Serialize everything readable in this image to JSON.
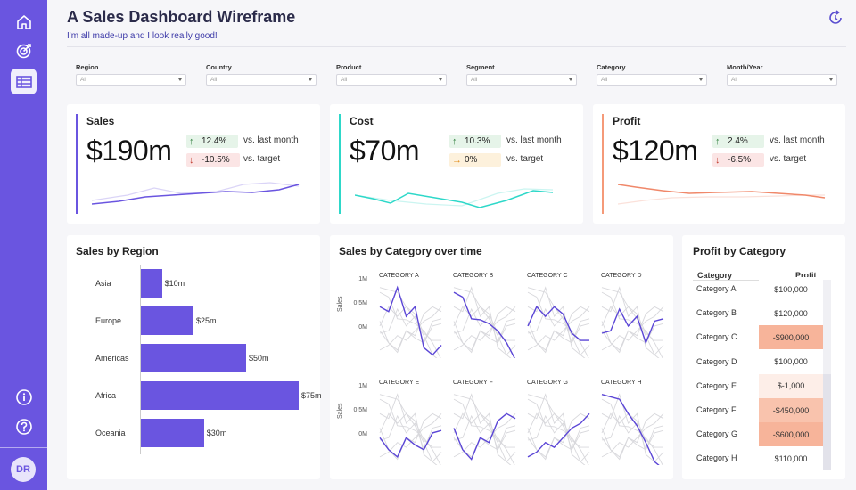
{
  "header": {
    "title": "A Sales Dashboard Wireframe",
    "subtitle": "I'm all made-up and I look really good!"
  },
  "sidebar": {
    "items": [
      {
        "icon": "home-icon"
      },
      {
        "icon": "target-icon"
      },
      {
        "icon": "table-icon",
        "active": true
      }
    ],
    "bottom_items": [
      {
        "icon": "info-icon"
      },
      {
        "icon": "help-icon"
      }
    ],
    "avatar_initials": "DR"
  },
  "filters": [
    {
      "label": "Region",
      "value": "All"
    },
    {
      "label": "Country",
      "value": "All"
    },
    {
      "label": "Product",
      "value": "All"
    },
    {
      "label": "Segment",
      "value": "All"
    },
    {
      "label": "Category",
      "value": "All"
    },
    {
      "label": "Month/Year",
      "value": "All"
    }
  ],
  "kpis": [
    {
      "title": "Sales",
      "value": "$190m",
      "accent": "#6a55e0",
      "b1": {
        "text": "12.4%",
        "label": "vs. last month",
        "dir": "up"
      },
      "b2": {
        "text": "-10.5%",
        "label": "vs. target",
        "dir": "down"
      },
      "line_color": "#6a55e0"
    },
    {
      "title": "Cost",
      "value": "$70m",
      "accent": "#2ed8c9",
      "b1": {
        "text": "10.3%",
        "label": "vs. last month",
        "dir": "up"
      },
      "b2": {
        "text": "0%",
        "label": "vs. target",
        "dir": "flat"
      },
      "line_color": "#2ed8c9"
    },
    {
      "title": "Profit",
      "value": "$120m",
      "accent": "#f59a79",
      "b1": {
        "text": "2.4%",
        "label": "vs. last month",
        "dir": "up"
      },
      "b2": {
        "text": "-6.5%",
        "label": "vs. target",
        "dir": "down"
      },
      "line_color": "#f0886a"
    }
  ],
  "colors": {
    "up_bg": "#e6f4e9",
    "up_fg": "#2e7d3c",
    "down_bg": "#fbe5e5",
    "down_fg": "#c0392b",
    "flat_bg": "#fdf1dc",
    "flat_fg": "#e08a16"
  },
  "region": {
    "title": "Sales by Region",
    "chart_data": {
      "type": "bar",
      "categories": [
        "Asia",
        "Europe",
        "Americas",
        "Africa",
        "Oceania"
      ],
      "values": [
        10,
        25,
        50,
        75,
        30
      ],
      "value_labels": [
        "$10m",
        "$25m",
        "$50m",
        "$75m",
        "$30m"
      ],
      "xlim": [
        0,
        75
      ]
    }
  },
  "category_time": {
    "title": "Sales by Category over time",
    "ylabel": "Sales",
    "ticks": [
      "1M",
      "0.5M",
      "0M"
    ],
    "chart_data": {
      "type": "line",
      "series": [
        {
          "name": "CATEGORY A",
          "values": [
            0.55,
            0.45,
            0.95,
            0.35,
            0.55,
            -0.3,
            -0.45,
            -0.25
          ]
        },
        {
          "name": "CATEGORY B",
          "values": [
            0.85,
            0.75,
            0.3,
            0.28,
            0.2,
            0.05,
            -0.2,
            -0.55
          ]
        },
        {
          "name": "CATEGORY C",
          "values": [
            0.15,
            0.55,
            0.35,
            0.55,
            0.4,
            0.0,
            -0.15,
            -0.15
          ]
        },
        {
          "name": "CATEGORY D",
          "values": [
            0.0,
            0.05,
            0.5,
            0.15,
            0.35,
            -0.2,
            0.25,
            0.3
          ]
        },
        {
          "name": "CATEGORY E",
          "values": [
            0.05,
            -0.2,
            -0.35,
            0.05,
            -0.1,
            -0.2,
            0.15,
            0.2
          ]
        },
        {
          "name": "CATEGORY F",
          "values": [
            0.25,
            -0.2,
            -0.4,
            0.05,
            -0.05,
            0.4,
            0.55,
            0.45
          ]
        },
        {
          "name": "CATEGORY G",
          "values": [
            -0.35,
            -0.25,
            -0.05,
            -0.15,
            0.05,
            0.25,
            0.35,
            0.55
          ]
        },
        {
          "name": "CATEGORY H",
          "values": [
            0.95,
            0.9,
            0.85,
            0.55,
            0.3,
            -0.05,
            -0.45,
            -0.6
          ]
        }
      ]
    }
  },
  "profit_table": {
    "title": "Profit by Category",
    "headers": [
      "Category",
      "Profit"
    ],
    "rows": [
      {
        "category": "Category A",
        "profit": "$100,000",
        "bg": "#ffffff"
      },
      {
        "category": "Category B",
        "profit": "$120,000",
        "bg": "#ffffff"
      },
      {
        "category": "Category C",
        "profit": "-$900,000",
        "bg": "#f7b49a"
      },
      {
        "category": "Category D",
        "profit": "$100,000",
        "bg": "#ffffff"
      },
      {
        "category": "Category E",
        "profit": "$-1,000",
        "bg": "#fdeee8"
      },
      {
        "category": "Category F",
        "profit": "-$450,000",
        "bg": "#f9c3ad"
      },
      {
        "category": "Category G",
        "profit": "-$600,000",
        "bg": "#f7b49a"
      },
      {
        "category": "Category H",
        "profit": "$110,000",
        "bg": "#ffffff"
      }
    ]
  }
}
